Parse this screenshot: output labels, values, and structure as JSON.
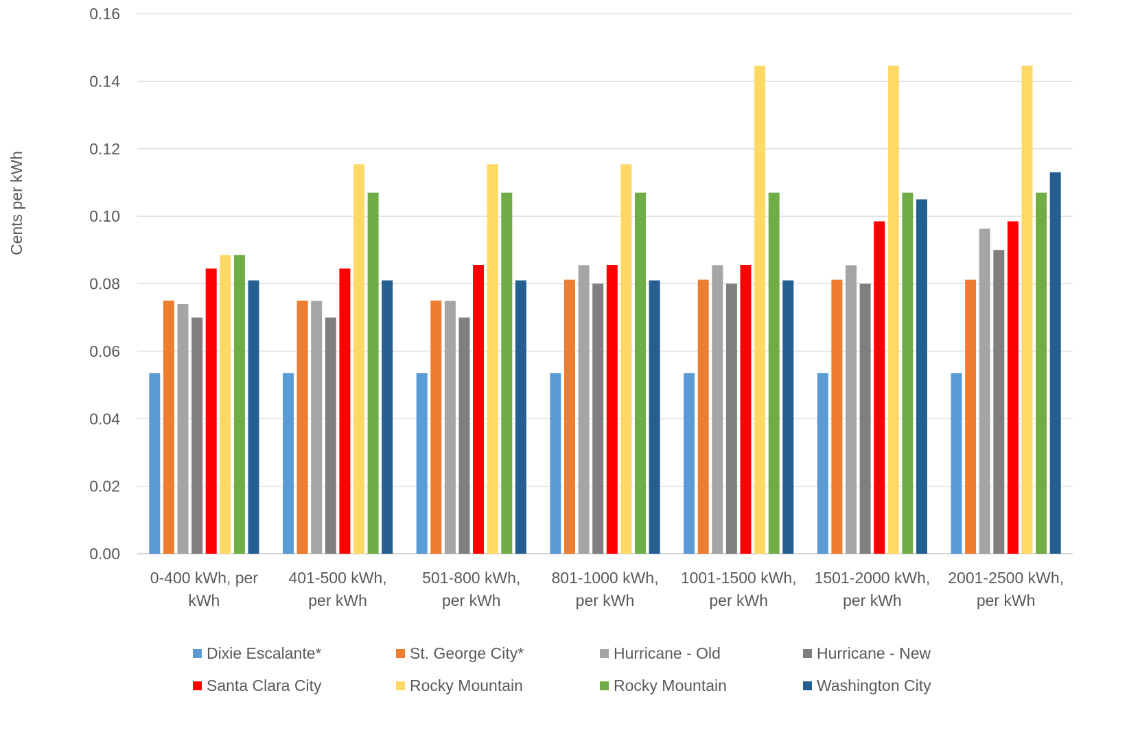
{
  "chart_data": {
    "type": "bar",
    "title": "",
    "xlabel": "",
    "ylabel": "Cents per kWh",
    "ylim": [
      0,
      0.16
    ],
    "yticks": [
      "0.00",
      "0.02",
      "0.04",
      "0.06",
      "0.08",
      "0.10",
      "0.12",
      "0.14",
      "0.16"
    ],
    "ytick_values": [
      0,
      0.02,
      0.04,
      0.06,
      0.08,
      0.1,
      0.12,
      0.14,
      0.16
    ],
    "grid": true,
    "legend_position": "bottom",
    "categories": [
      [
        "0-400 kWh, per",
        "kWh"
      ],
      [
        "401-500 kWh,",
        "per kWh"
      ],
      [
        "501-800 kWh,",
        "per kWh"
      ],
      [
        "801-1000 kWh,",
        "per kWh"
      ],
      [
        "1001-1500 kWh,",
        "per kWh"
      ],
      [
        "1501-2000 kWh,",
        "per kWh"
      ],
      [
        "2001-2500 kWh,",
        "per kWh"
      ]
    ],
    "series": [
      {
        "name": "Dixie Escalante*",
        "color": "#5b9bd5",
        "values": [
          0.0535,
          0.0535,
          0.0535,
          0.0535,
          0.0535,
          0.0535,
          0.0535
        ]
      },
      {
        "name": "St. George City*",
        "color": "#ed7d31",
        "values": [
          0.075,
          0.075,
          0.075,
          0.0812,
          0.0812,
          0.0812,
          0.0812
        ]
      },
      {
        "name": "Hurricane - Old",
        "color": "#a5a5a5",
        "values": [
          0.074,
          0.0749,
          0.0749,
          0.0855,
          0.0855,
          0.0855,
          0.0963
        ]
      },
      {
        "name": "Hurricane - New",
        "color": "#7f7f7f",
        "values": [
          0.07,
          0.07,
          0.07,
          0.08,
          0.08,
          0.08,
          0.09
        ]
      },
      {
        "name": "Santa Clara City",
        "color": "#ff0000",
        "values": [
          0.0845,
          0.0845,
          0.0856,
          0.0856,
          0.0856,
          0.0985,
          0.0985
        ]
      },
      {
        "name": "Rocky Mountain",
        "color": "#ffd966",
        "values": [
          0.0885,
          0.1154,
          0.1154,
          0.1154,
          0.1446,
          0.1446,
          0.1446
        ]
      },
      {
        "name": "Rocky Mountain",
        "color": "#70ad47",
        "values": [
          0.0885,
          0.107,
          0.107,
          0.107,
          0.107,
          0.107,
          0.107
        ]
      },
      {
        "name": "Washington City",
        "color": "#255e91",
        "values": [
          0.081,
          0.081,
          0.081,
          0.081,
          0.081,
          0.105,
          0.113
        ]
      }
    ]
  }
}
